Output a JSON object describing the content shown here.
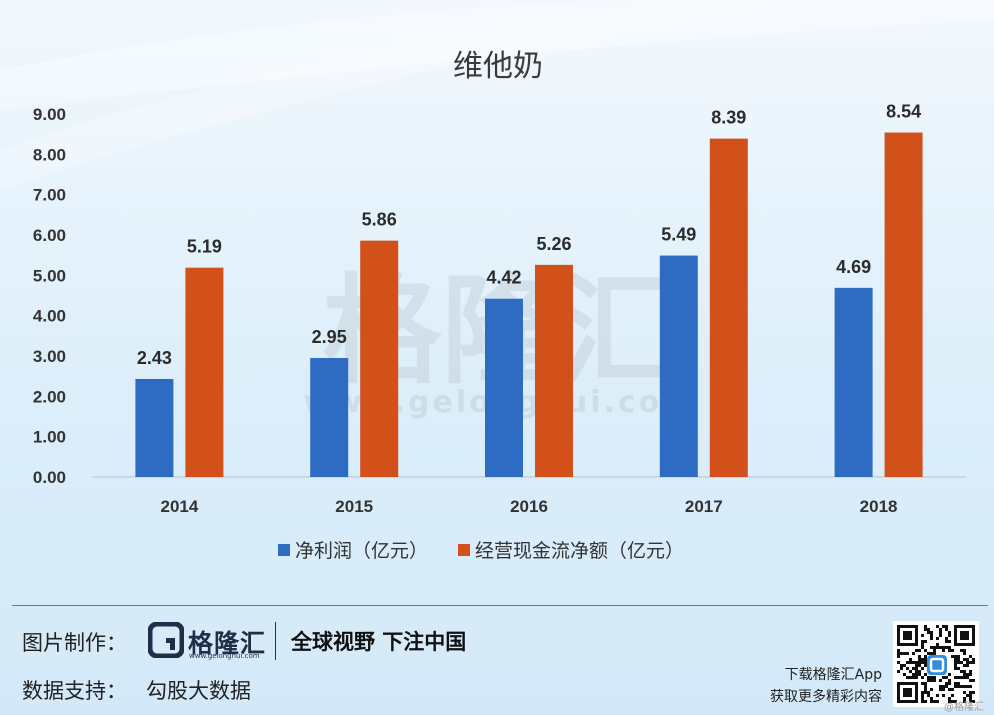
{
  "chart_data": {
    "type": "bar",
    "title": "维他奶",
    "categories": [
      "2014",
      "2015",
      "2016",
      "2017",
      "2018"
    ],
    "series": [
      {
        "name": "净利润（亿元）",
        "color": "#2e6cc4",
        "values": [
          2.43,
          2.95,
          4.42,
          5.49,
          4.69
        ]
      },
      {
        "name": "经营现金流净额（亿元）",
        "color": "#d2501a",
        "values": [
          5.19,
          5.86,
          5.26,
          8.39,
          8.54
        ]
      }
    ],
    "y_ticks": [
      "0.00",
      "1.00",
      "2.00",
      "3.00",
      "4.00",
      "5.00",
      "6.00",
      "7.00",
      "8.00",
      "9.00"
    ],
    "ylim": [
      0,
      9
    ],
    "grid": false,
    "legend_position": "bottom",
    "data_labels": true
  },
  "watermark": {
    "text": "格隆汇",
    "url": "www.gelonghui.com"
  },
  "footer": {
    "made_by_label": "图片制作：",
    "logo_name": "格隆汇",
    "logo_url": "www.gelonghui.com",
    "slogan": "全球视野 下注中国",
    "data_support_label": "数据支持：",
    "data_support_value": "勾股大数据",
    "app_line1": "下载格隆汇App",
    "app_line2": "获取更多精彩内容",
    "qr_watermark": "@格隆汇"
  }
}
